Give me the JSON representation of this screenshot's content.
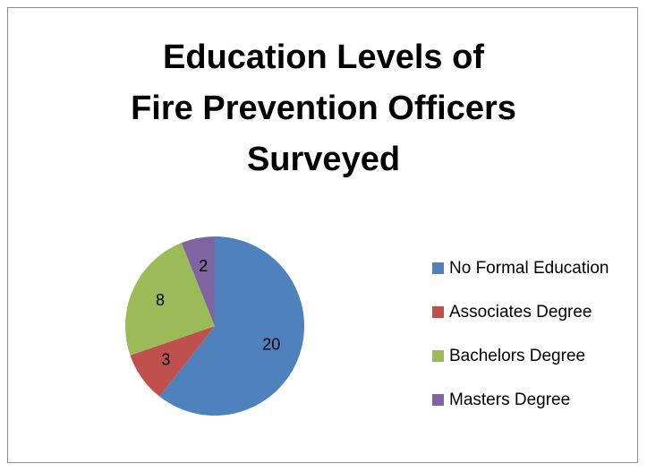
{
  "chart_data": {
    "type": "pie",
    "title": "Education Levels of Fire Prevention Officers Surveyed",
    "title_lines": [
      "Education Levels of",
      "Fire Prevention Officers",
      "Surveyed"
    ],
    "categories": [
      "No Formal Education",
      "Associates Degree",
      "Bachelors Degree",
      "Masters Degree"
    ],
    "values": [
      20,
      3,
      8,
      2
    ],
    "colors": [
      "#4f81bd",
      "#c0504d",
      "#9bbb59",
      "#8064a2"
    ],
    "legend_position": "right",
    "data_labels": true
  }
}
